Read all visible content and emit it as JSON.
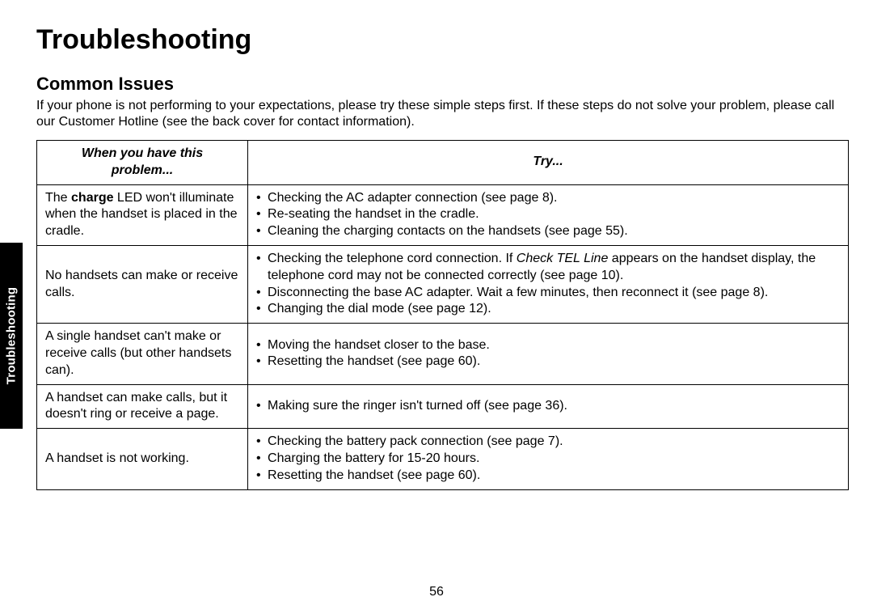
{
  "sideTab": "Troubleshooting",
  "title": "Troubleshooting",
  "subtitle": "Common Issues",
  "intro": "If your phone is not performing to your expectations, please try these simple steps first. If these steps do not solve your problem, please call our Customer Hotline (see the back cover for contact information).",
  "table": {
    "headers": {
      "problem_l1": "When you have this",
      "problem_l2": "problem...",
      "try": "Try..."
    },
    "rows": [
      {
        "problem_pre": "The ",
        "problem_bold": "charge",
        "problem_post": " LED won't illuminate when the handset is placed in the cradle.",
        "try": [
          {
            "text": "Checking the AC adapter connection (see page 8)."
          },
          {
            "text": "Re-seating the handset in the cradle."
          },
          {
            "text": "Cleaning the charging contacts on the handsets (see page 55)."
          }
        ]
      },
      {
        "problem": "No handsets can make or receive calls.",
        "try": [
          {
            "pre": "Checking the telephone cord connection. If ",
            "ital": "Check TEL Line",
            "post": " appears on the handset display, the telephone cord may not be connected correctly (see page 10)."
          },
          {
            "text": "Disconnecting the base AC adapter. Wait a few minutes, then reconnect it (see page 8)."
          },
          {
            "text": "Changing the dial mode (see page 12)."
          }
        ]
      },
      {
        "problem": "A single handset can't make or receive calls (but other handsets can).",
        "try": [
          {
            "text": "Moving the handset closer to the base."
          },
          {
            "text": "Resetting the handset (see page 60)."
          }
        ]
      },
      {
        "problem": "A handset can make calls, but it doesn't ring or receive a page.",
        "try": [
          {
            "text": "Making sure the ringer isn't turned off (see page 36)."
          }
        ]
      },
      {
        "problem": "A handset is not working.",
        "try": [
          {
            "text": "Checking the battery pack connection (see page 7)."
          },
          {
            "text": "Charging the battery for 15-20 hours."
          },
          {
            "text": "Resetting the handset (see page 60)."
          }
        ]
      }
    ]
  },
  "pageNumber": "56",
  "style": {
    "page_bg": "#ffffff",
    "text_color": "#000000",
    "tab_bg": "#000000",
    "tab_text": "#ffffff",
    "border_color": "#000000",
    "title_fontsize": 34,
    "subtitle_fontsize": 22,
    "body_fontsize": 16,
    "col1_width_pct": 26,
    "col2_width_pct": 74
  }
}
